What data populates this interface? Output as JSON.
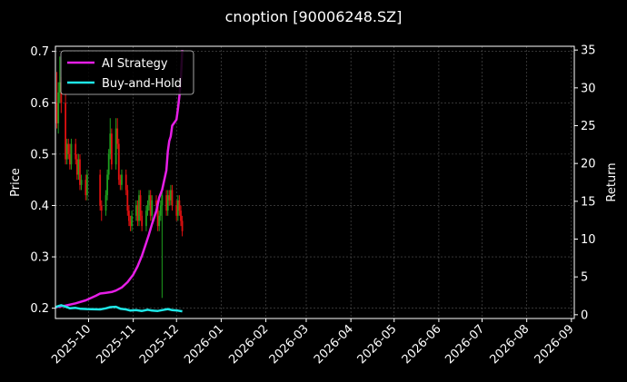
{
  "colors": {
    "background": "#000000",
    "axes": "#ffffff",
    "grid": "#555555",
    "candle_up": "#1e9e1e",
    "candle_down": "#e01010",
    "strategy": "#e61ee6",
    "buy_hold": "#1ee6e6"
  },
  "chart_data": {
    "type": "line",
    "title": "cnoption [90006248.SZ]",
    "xlabel": "",
    "ylabel_left": "Price",
    "ylabel_right": "Return",
    "ylim_left": [
      0.18,
      0.71
    ],
    "ylim_right": [
      -0.5,
      35.5
    ],
    "xlim": [
      "2025-09-08",
      "2026-09-03"
    ],
    "x_ticks": [
      "2025-10",
      "2025-11",
      "2025-12",
      "2026-01",
      "2026-02",
      "2026-03",
      "2026-04",
      "2026-05",
      "2026-06",
      "2026-07",
      "2026-08",
      "2026-09"
    ],
    "y_ticks_left": [
      "0.2",
      "0.3",
      "0.4",
      "0.5",
      "0.6",
      "0.7"
    ],
    "y_ticks_right": [
      "0",
      "5",
      "10",
      "15",
      "20",
      "25",
      "30",
      "35"
    ],
    "grid": true,
    "legend_position": "top-left",
    "candles": {
      "dates": [
        "2025-09-09",
        "2025-09-10",
        "2025-09-11",
        "2025-09-12",
        "2025-09-15",
        "2025-09-16",
        "2025-09-17",
        "2025-09-18",
        "2025-09-19",
        "2025-09-22",
        "2025-09-23",
        "2025-09-24",
        "2025-09-25",
        "2025-09-26",
        "2025-09-29",
        "2025-09-30",
        "2025-10-09",
        "2025-10-10",
        "2025-10-13",
        "2025-10-14",
        "2025-10-15",
        "2025-10-16",
        "2025-10-17",
        "2025-10-20",
        "2025-10-21",
        "2025-10-22",
        "2025-10-23",
        "2025-10-24",
        "2025-10-27",
        "2025-10-28",
        "2025-10-29",
        "2025-10-30",
        "2025-10-31",
        "2025-11-03",
        "2025-11-04",
        "2025-11-05",
        "2025-11-06",
        "2025-11-07",
        "2025-11-10",
        "2025-11-11",
        "2025-11-12",
        "2025-11-13",
        "2025-11-14",
        "2025-11-17",
        "2025-11-18",
        "2025-11-19",
        "2025-11-20",
        "2025-11-21",
        "2025-11-24",
        "2025-11-25",
        "2025-11-26",
        "2025-11-27",
        "2025-11-28",
        "2025-12-01",
        "2025-12-02",
        "2025-12-03",
        "2025-12-04",
        "2025-12-05"
      ],
      "open": [
        0.6,
        0.56,
        0.62,
        0.64,
        0.6,
        0.49,
        0.52,
        0.5,
        0.48,
        0.52,
        0.49,
        0.46,
        0.49,
        0.44,
        0.45,
        0.42,
        0.46,
        0.4,
        0.39,
        0.42,
        0.46,
        0.5,
        0.54,
        0.48,
        0.55,
        0.52,
        0.45,
        0.44,
        0.46,
        0.43,
        0.39,
        0.37,
        0.36,
        0.38,
        0.4,
        0.37,
        0.42,
        0.38,
        0.36,
        0.39,
        0.4,
        0.42,
        0.38,
        0.41,
        0.4,
        0.36,
        0.38,
        0.4,
        0.42,
        0.39,
        0.42,
        0.41,
        0.43,
        0.4,
        0.38,
        0.41,
        0.39,
        0.37
      ],
      "close": [
        0.56,
        0.62,
        0.64,
        0.6,
        0.49,
        0.52,
        0.5,
        0.48,
        0.52,
        0.49,
        0.46,
        0.49,
        0.44,
        0.45,
        0.42,
        0.46,
        0.4,
        0.39,
        0.42,
        0.46,
        0.5,
        0.54,
        0.48,
        0.55,
        0.52,
        0.45,
        0.44,
        0.46,
        0.43,
        0.39,
        0.37,
        0.36,
        0.38,
        0.4,
        0.37,
        0.42,
        0.38,
        0.36,
        0.39,
        0.4,
        0.42,
        0.38,
        0.41,
        0.4,
        0.36,
        0.38,
        0.4,
        0.42,
        0.39,
        0.42,
        0.41,
        0.43,
        0.4,
        0.38,
        0.41,
        0.39,
        0.37,
        0.35
      ],
      "high": [
        0.66,
        0.64,
        0.69,
        0.65,
        0.62,
        0.53,
        0.53,
        0.52,
        0.53,
        0.53,
        0.5,
        0.5,
        0.5,
        0.46,
        0.46,
        0.47,
        0.47,
        0.41,
        0.43,
        0.47,
        0.51,
        0.57,
        0.55,
        0.57,
        0.57,
        0.53,
        0.46,
        0.47,
        0.47,
        0.44,
        0.4,
        0.38,
        0.39,
        0.41,
        0.41,
        0.43,
        0.43,
        0.39,
        0.4,
        0.41,
        0.43,
        0.43,
        0.42,
        0.42,
        0.41,
        0.39,
        0.41,
        0.43,
        0.43,
        0.43,
        0.43,
        0.44,
        0.44,
        0.41,
        0.42,
        0.42,
        0.4,
        0.38
      ],
      "low": [
        0.55,
        0.54,
        0.6,
        0.58,
        0.48,
        0.48,
        0.49,
        0.47,
        0.47,
        0.48,
        0.45,
        0.45,
        0.43,
        0.43,
        0.41,
        0.41,
        0.39,
        0.37,
        0.38,
        0.41,
        0.45,
        0.49,
        0.47,
        0.47,
        0.51,
        0.44,
        0.43,
        0.43,
        0.42,
        0.38,
        0.36,
        0.35,
        0.35,
        0.37,
        0.36,
        0.36,
        0.37,
        0.35,
        0.35,
        0.38,
        0.39,
        0.37,
        0.37,
        0.39,
        0.35,
        0.35,
        0.37,
        0.22,
        0.38,
        0.38,
        0.4,
        0.4,
        0.39,
        0.37,
        0.37,
        0.38,
        0.36,
        0.34
      ]
    },
    "series": [
      {
        "name": "AI Strategy",
        "axis": "right",
        "x": [
          "2025-09-08",
          "2025-09-15",
          "2025-09-22",
          "2025-09-29",
          "2025-10-06",
          "2025-10-09",
          "2025-10-13",
          "2025-10-17",
          "2025-10-20",
          "2025-10-24",
          "2025-10-28",
          "2025-11-01",
          "2025-11-04",
          "2025-11-07",
          "2025-11-10",
          "2025-11-12",
          "2025-11-14",
          "2025-11-17",
          "2025-11-19",
          "2025-11-21",
          "2025-11-24",
          "2025-11-25",
          "2025-11-26",
          "2025-11-27",
          "2025-11-28",
          "2025-12-01",
          "2025-12-02",
          "2025-12-03",
          "2025-12-04",
          "2025-12-05"
        ],
        "values": [
          1.0,
          1.2,
          1.5,
          1.9,
          2.5,
          2.8,
          2.9,
          3.0,
          3.2,
          3.6,
          4.3,
          5.3,
          6.4,
          7.8,
          9.5,
          10.7,
          12.0,
          13.7,
          15.5,
          16.5,
          19.1,
          21.6,
          23.0,
          23.6,
          25.0,
          25.8,
          27.2,
          28.9,
          31.0,
          35.0
        ]
      },
      {
        "name": "Buy-and-Hold",
        "axis": "right",
        "x": [
          "2025-09-08",
          "2025-09-10",
          "2025-09-12",
          "2025-09-16",
          "2025-09-18",
          "2025-09-22",
          "2025-09-25",
          "2025-09-30",
          "2025-10-09",
          "2025-10-13",
          "2025-10-16",
          "2025-10-20",
          "2025-10-23",
          "2025-10-27",
          "2025-10-30",
          "2025-11-03",
          "2025-11-07",
          "2025-11-11",
          "2025-11-14",
          "2025-11-18",
          "2025-11-21",
          "2025-11-25",
          "2025-11-28",
          "2025-12-02",
          "2025-12-05"
        ],
        "values": [
          1.0,
          1.15,
          1.25,
          1.0,
          0.85,
          0.9,
          0.8,
          0.75,
          0.7,
          0.85,
          1.0,
          1.05,
          0.8,
          0.7,
          0.55,
          0.6,
          0.5,
          0.65,
          0.55,
          0.5,
          0.6,
          0.75,
          0.6,
          0.55,
          0.45
        ]
      }
    ]
  }
}
